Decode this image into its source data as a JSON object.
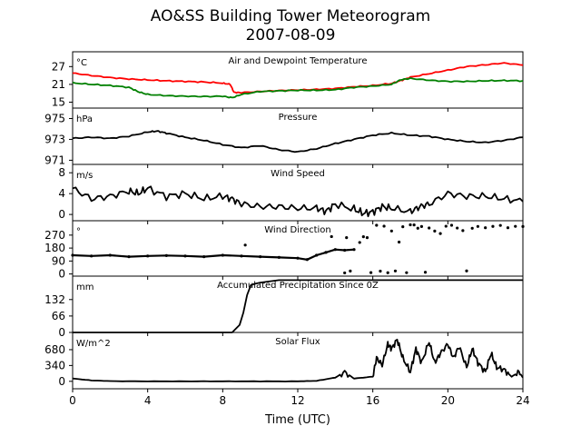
{
  "figure": {
    "title_line1": "AO&SS Building Tower Meteorogram",
    "title_line2": "2007-08-09",
    "xlabel": "Time (UTC)"
  },
  "colors": {
    "temperature": "#ff0000",
    "dewpoint": "#008000",
    "default": "#000000"
  },
  "chart_data": [
    {
      "type": "line",
      "title": "Air and Dewpoint Temperature",
      "unit": "°C",
      "xlim": [
        0,
        24
      ],
      "ylim": [
        13,
        32
      ],
      "yticks": [
        15,
        21,
        27
      ],
      "xticks": [
        0,
        4,
        8,
        12,
        16,
        20,
        24
      ],
      "series": [
        {
          "key": "temperature",
          "x": [
            0,
            1,
            2,
            3,
            4,
            5,
            6,
            7,
            8,
            8.4,
            8.6,
            9,
            10,
            11,
            12,
            13,
            14,
            15,
            16,
            17,
            17.5,
            18,
            19,
            20,
            21,
            22,
            23,
            24
          ],
          "values": [
            24.8,
            24.0,
            23.3,
            22.8,
            22.5,
            22.2,
            22.0,
            21.8,
            21.4,
            21.0,
            18.3,
            18.2,
            18.6,
            18.9,
            19.1,
            19.3,
            19.6,
            20.2,
            20.6,
            21.3,
            22.3,
            23.4,
            24.6,
            25.8,
            27.0,
            27.6,
            28.2,
            27.5
          ]
        },
        {
          "key": "dewpoint",
          "x": [
            0,
            1,
            2,
            3,
            3.5,
            4,
            5,
            6,
            7,
            8,
            8.5,
            9,
            10,
            11,
            12,
            13,
            14,
            15,
            16,
            17,
            17.5,
            18,
            19,
            20,
            21,
            22,
            23,
            24
          ],
          "values": [
            21.5,
            21.0,
            20.6,
            20.0,
            18.5,
            17.6,
            17.2,
            17.0,
            16.9,
            17.0,
            16.5,
            17.6,
            18.6,
            18.8,
            19.0,
            19.0,
            19.2,
            20.0,
            20.4,
            21.0,
            22.6,
            23.0,
            22.4,
            22.0,
            22.0,
            22.2,
            22.3,
            22.2
          ]
        }
      ]
    },
    {
      "type": "line",
      "title": "Pressure",
      "unit": "hPa",
      "xlim": [
        0,
        24
      ],
      "ylim": [
        970.6,
        976.0
      ],
      "yticks": [
        971,
        973,
        975
      ],
      "series": [
        {
          "key": "pressure",
          "x": [
            0,
            1,
            2,
            3,
            4,
            4.5,
            5,
            6,
            7,
            8,
            9,
            10,
            11,
            12,
            13,
            14,
            15,
            16,
            17,
            18,
            19,
            20,
            21,
            22,
            23,
            24
          ],
          "values": [
            973.1,
            973.2,
            973.1,
            973.3,
            973.7,
            973.8,
            973.6,
            973.2,
            972.9,
            972.5,
            972.2,
            972.4,
            972.0,
            971.8,
            972.1,
            972.6,
            973.0,
            973.4,
            973.6,
            973.4,
            973.3,
            973.0,
            972.8,
            972.7,
            972.9,
            973.2
          ]
        }
      ]
    },
    {
      "type": "line",
      "title": "Wind Speed",
      "unit": "m/s",
      "xlim": [
        0,
        24
      ],
      "ylim": [
        -1.2,
        9.6
      ],
      "yticks": [
        0,
        4,
        8
      ],
      "series": [
        {
          "key": "wind_speed",
          "x": [
            0,
            1,
            2,
            3,
            3.5,
            4,
            5,
            6,
            7,
            8,
            8.5,
            9,
            10,
            11,
            12,
            13,
            13.5,
            14,
            15,
            15.5,
            16,
            16.5,
            17,
            18,
            18.5,
            19,
            20,
            21,
            22,
            23,
            24
          ],
          "values": [
            5.0,
            3.0,
            3.5,
            4.5,
            4.0,
            5.0,
            3.5,
            4.0,
            3.0,
            3.5,
            3.0,
            2.0,
            1.5,
            1.5,
            1.2,
            1.2,
            0.6,
            2.0,
            1.0,
            0.2,
            0.5,
            1.5,
            1.2,
            0.5,
            1.5,
            2.0,
            4.0,
            3.5,
            3.5,
            3.0,
            2.5
          ]
        }
      ]
    },
    {
      "type": "scatter",
      "title": "Wind Direction",
      "unit": "°",
      "xlim": [
        0,
        24
      ],
      "ylim": [
        -15,
        370
      ],
      "yticks": [
        0,
        90,
        180,
        270
      ],
      "series": [
        {
          "key": "wind_direction_trend",
          "x": [
            0,
            1,
            2,
            3,
            4,
            5,
            6,
            7,
            8,
            9,
            10,
            11,
            12,
            12.5,
            13,
            13.5,
            14,
            14.5,
            15
          ],
          "values": [
            130,
            125,
            130,
            120,
            125,
            128,
            125,
            120,
            130,
            125,
            120,
            115,
            110,
            100,
            130,
            150,
            170,
            165,
            170
          ]
        },
        {
          "key": "wind_direction_scattered",
          "x": [
            9.2,
            13.8,
            14.5,
            14.6,
            14.8,
            15.3,
            15.5,
            15.7,
            15.9,
            16.2,
            16.4,
            16.6,
            16.8,
            17.0,
            17.2,
            17.4,
            17.6,
            17.8,
            18.0,
            18.2,
            18.4,
            18.6,
            18.8,
            19.0,
            19.3,
            19.6,
            19.9,
            20.2,
            20.5,
            20.8,
            21.0,
            21.3,
            21.6,
            22.0,
            22.4,
            22.8,
            23.2,
            23.6,
            24.0
          ],
          "values": [
            200,
            260,
            10,
            250,
            20,
            220,
            260,
            250,
            10,
            340,
            20,
            330,
            10,
            300,
            20,
            220,
            330,
            10,
            340,
            340,
            320,
            330,
            10,
            320,
            300,
            280,
            330,
            340,
            320,
            300,
            20,
            320,
            330,
            320,
            330,
            340,
            320,
            330,
            330
          ]
        }
      ]
    },
    {
      "type": "line",
      "title": "Accumulated Precipitation Since 0Z",
      "unit": "mm",
      "xlim": [
        0,
        24
      ],
      "ylim": [
        0,
        226
      ],
      "yticks": [
        0,
        66,
        132
      ],
      "series": [
        {
          "key": "precipitation",
          "x": [
            0,
            8.5,
            8.9,
            9.1,
            9.3,
            9.5,
            9.7,
            10.0,
            11.0,
            12.0,
            16.0,
            20.0,
            24.0
          ],
          "values": [
            0,
            0,
            30,
            80,
            150,
            190,
            195,
            200,
            210,
            210,
            210,
            210,
            210
          ]
        }
      ]
    },
    {
      "type": "line",
      "title": "Solar Flux",
      "unit": "W/m^2",
      "xlim": [
        0,
        24
      ],
      "ylim": [
        -160,
        1050
      ],
      "yticks": [
        0,
        340,
        680
      ],
      "series": [
        {
          "key": "solar_flux",
          "x": [
            0,
            1,
            2,
            4,
            6,
            8,
            10,
            12,
            13,
            14,
            14.5,
            15,
            16,
            16.2,
            16.5,
            16.8,
            17,
            17.3,
            17.6,
            18,
            18.3,
            18.6,
            19,
            19.3,
            19.6,
            20,
            20.3,
            20.6,
            21,
            21.3,
            21.6,
            22,
            22.3,
            22.6,
            23,
            23.4,
            23.8,
            24
          ],
          "values": [
            60,
            20,
            5,
            0,
            0,
            0,
            0,
            0,
            10,
            80,
            200,
            60,
            100,
            500,
            350,
            800,
            700,
            900,
            500,
            200,
            700,
            400,
            850,
            400,
            600,
            800,
            500,
            750,
            300,
            700,
            400,
            200,
            600,
            300,
            250,
            100,
            200,
            80
          ]
        }
      ]
    }
  ]
}
